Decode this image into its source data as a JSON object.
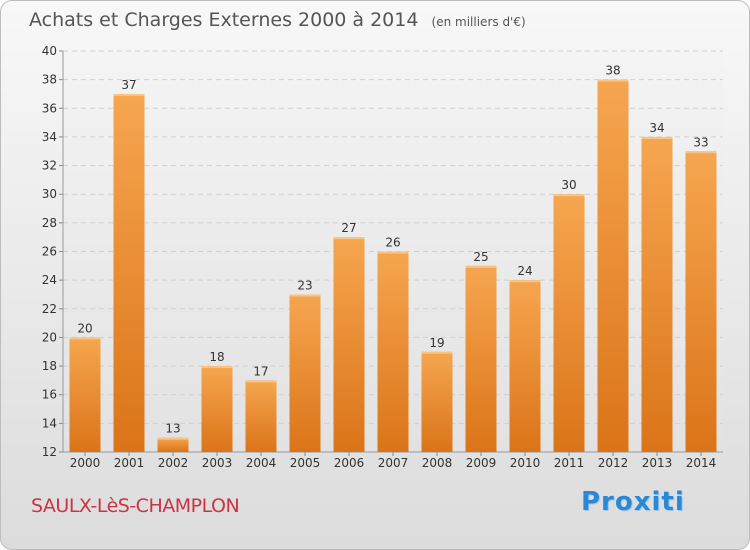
{
  "chart_data": {
    "type": "bar",
    "title": "Achats et Charges Externes 2000 à 2014",
    "subtitle": "(en milliers d'€)",
    "categories": [
      "2000",
      "2001",
      "2002",
      "2003",
      "2004",
      "2005",
      "2006",
      "2007",
      "2008",
      "2009",
      "2010",
      "2011",
      "2012",
      "2013",
      "2014"
    ],
    "values": [
      20,
      37,
      13,
      18,
      17,
      23,
      27,
      26,
      19,
      25,
      24,
      30,
      38,
      34,
      33
    ],
    "ylim": [
      12,
      40
    ],
    "yticks": [
      12,
      14,
      16,
      18,
      20,
      22,
      24,
      26,
      28,
      30,
      32,
      34,
      36,
      38,
      40
    ],
    "grid": true,
    "bar_color": "#f08a2c",
    "bar_highlight": "#f7b060"
  },
  "place_name": "SAULX-LèS-CHAMPLON",
  "logo_text": "Proxiti"
}
